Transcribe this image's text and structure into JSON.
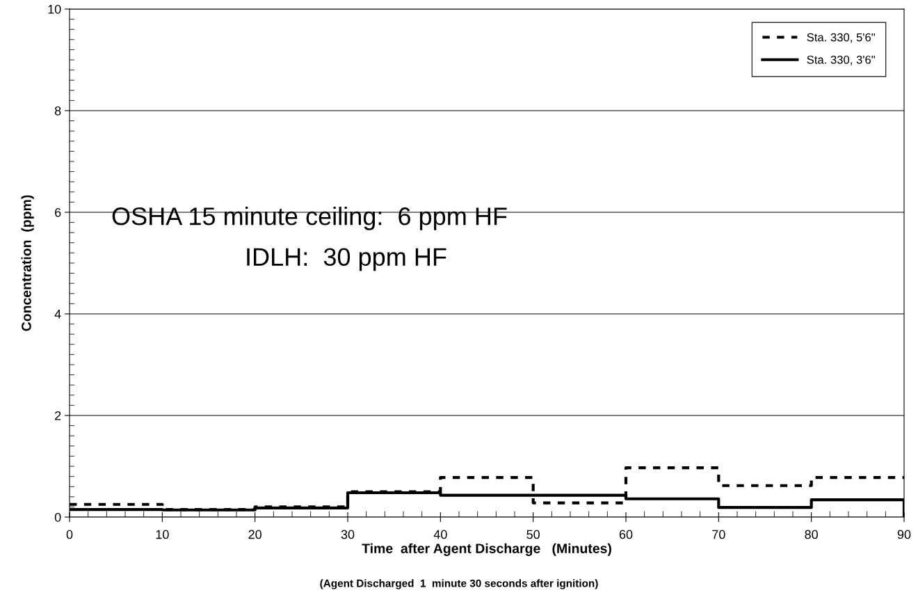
{
  "chart_data": {
    "type": "step",
    "xlabel": "Time  after Agent Discharge   (Minutes)",
    "ylabel": "Concentration  (ppm)",
    "x": [
      0,
      10,
      20,
      30,
      40,
      50,
      60,
      70,
      80,
      90
    ],
    "series": [
      {
        "name": "Sta. 330, 5'6\"",
        "color": "#000000",
        "line_style": "dashed",
        "values": [
          0.25,
          0.15,
          0.2,
          0.5,
          0.78,
          0.28,
          0.97,
          0.62,
          0.78,
          0.78
        ]
      },
      {
        "name": "Sta. 330, 3'6\"",
        "color": "#000000",
        "line_style": "solid",
        "values": [
          0.15,
          0.14,
          0.18,
          0.48,
          0.43,
          0.43,
          0.36,
          0.19,
          0.34,
          0
        ]
      }
    ],
    "xlim": [
      0,
      90
    ],
    "xticks": [
      0,
      10,
      20,
      30,
      40,
      50,
      60,
      70,
      80,
      90
    ],
    "ylim": [
      0,
      10
    ],
    "yticks": [
      0,
      2,
      4,
      6,
      8,
      10
    ],
    "grid": "y",
    "legend": "top right",
    "marker": "none",
    "annotations": [
      "OSHA 15 minute ceiling:  6 ppm HF",
      "IDLH:  30 ppm HF",
      "(Agent Discharged  1  minute 30 seconds after ignition)"
    ]
  }
}
